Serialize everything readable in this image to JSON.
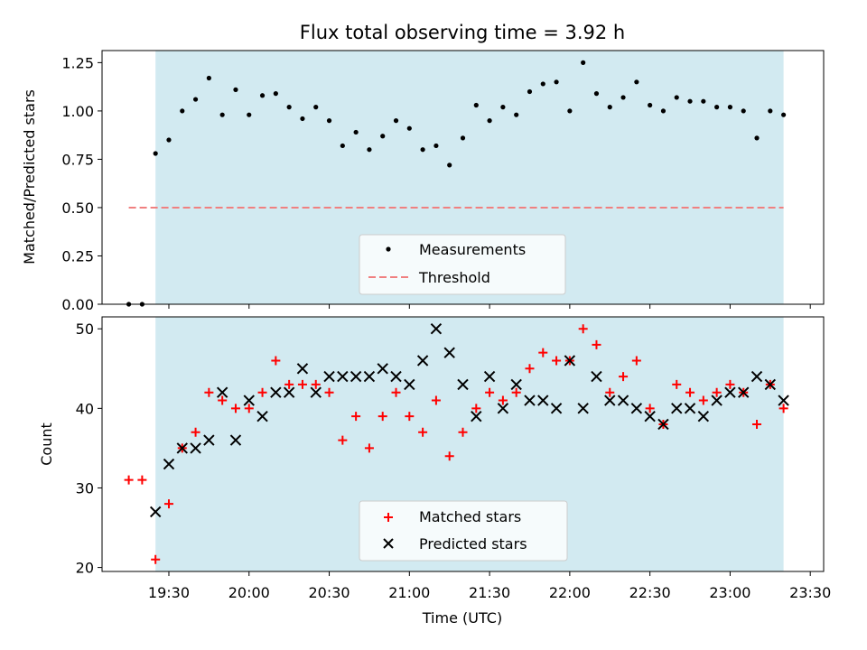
{
  "chart_data": [
    {
      "type": "scatter",
      "title": "Flux total observing time = 3.92 h",
      "xlabel": "",
      "ylabel": "Matched/Predicted stars",
      "ylim": [
        0,
        1.3125
      ],
      "x_tick_labels": [
        "19:30",
        "20:00",
        "20:30",
        "21:00",
        "21:30",
        "22:00",
        "22:30",
        "23:00",
        "23:30"
      ],
      "y_tick_labels": [
        "0.00",
        "0.25",
        "0.50",
        "0.75",
        "1.00",
        "1.25"
      ],
      "y_ticks": [
        0,
        0.25,
        0.5,
        0.75,
        1.0,
        1.25
      ],
      "shaded_span": {
        "start": "19:25",
        "end": "23:20",
        "color": "#add8e6"
      },
      "legend": {
        "placement": "lower center"
      },
      "series": [
        {
          "name": "Measurements",
          "marker": "dot",
          "color": "#000000",
          "points": [
            [
              "19:15",
              0.0
            ],
            [
              "19:20",
              0.0
            ],
            [
              "19:25",
              0.78
            ],
            [
              "19:30",
              0.85
            ],
            [
              "19:35",
              1.0
            ],
            [
              "19:40",
              1.06
            ],
            [
              "19:45",
              1.17
            ],
            [
              "19:50",
              0.98
            ],
            [
              "19:55",
              1.11
            ],
            [
              "20:00",
              0.98
            ],
            [
              "20:05",
              1.08
            ],
            [
              "20:10",
              1.09
            ],
            [
              "20:15",
              1.02
            ],
            [
              "20:20",
              0.96
            ],
            [
              "20:25",
              1.02
            ],
            [
              "20:30",
              0.95
            ],
            [
              "20:35",
              0.82
            ],
            [
              "20:40",
              0.89
            ],
            [
              "20:45",
              0.8
            ],
            [
              "20:50",
              0.87
            ],
            [
              "20:55",
              0.95
            ],
            [
              "21:00",
              0.91
            ],
            [
              "21:05",
              0.8
            ],
            [
              "21:10",
              0.82
            ],
            [
              "21:15",
              0.72
            ],
            [
              "21:20",
              0.86
            ],
            [
              "21:25",
              1.03
            ],
            [
              "21:30",
              0.95
            ],
            [
              "21:35",
              1.02
            ],
            [
              "21:40",
              0.98
            ],
            [
              "21:45",
              1.1
            ],
            [
              "21:50",
              1.14
            ],
            [
              "21:55",
              1.15
            ],
            [
              "22:00",
              1.0
            ],
            [
              "22:05",
              1.25
            ],
            [
              "22:10",
              1.09
            ],
            [
              "22:15",
              1.02
            ],
            [
              "22:20",
              1.07
            ],
            [
              "22:25",
              1.15
            ],
            [
              "22:30",
              1.03
            ],
            [
              "22:35",
              1.0
            ],
            [
              "22:40",
              1.07
            ],
            [
              "22:45",
              1.05
            ],
            [
              "22:50",
              1.05
            ],
            [
              "22:55",
              1.02
            ],
            [
              "23:00",
              1.02
            ],
            [
              "23:05",
              1.0
            ],
            [
              "23:10",
              0.86
            ],
            [
              "23:15",
              1.0
            ],
            [
              "23:20",
              0.98
            ]
          ]
        },
        {
          "name": "Threshold",
          "marker": "dashed-line",
          "color": "#f08080",
          "points": [
            [
              "19:15",
              0.5
            ],
            [
              "23:20",
              0.5
            ]
          ]
        }
      ]
    },
    {
      "type": "scatter",
      "title": "",
      "xlabel": "Time (UTC)",
      "ylabel": "Count",
      "ylim": [
        19.5,
        51.5
      ],
      "x_tick_labels": [
        "19:30",
        "20:00",
        "20:30",
        "21:00",
        "21:30",
        "22:00",
        "22:30",
        "23:00",
        "23:30"
      ],
      "y_tick_labels": [
        "20",
        "30",
        "40",
        "50"
      ],
      "y_ticks": [
        20,
        30,
        40,
        50
      ],
      "shaded_span": {
        "start": "19:25",
        "end": "23:20",
        "color": "#add8e6"
      },
      "legend": {
        "placement": "lower center"
      },
      "series": [
        {
          "name": "Matched stars",
          "marker": "plus",
          "color": "#ff0000",
          "points": [
            [
              "19:15",
              31
            ],
            [
              "19:20",
              31
            ],
            [
              "19:25",
              21
            ],
            [
              "19:30",
              28
            ],
            [
              "19:35",
              35
            ],
            [
              "19:40",
              37
            ],
            [
              "19:45",
              42
            ],
            [
              "19:50",
              41
            ],
            [
              "19:55",
              40
            ],
            [
              "20:00",
              40
            ],
            [
              "20:05",
              42
            ],
            [
              "20:10",
              46
            ],
            [
              "20:15",
              43
            ],
            [
              "20:20",
              43
            ],
            [
              "20:25",
              43
            ],
            [
              "20:30",
              42
            ],
            [
              "20:35",
              36
            ],
            [
              "20:40",
              39
            ],
            [
              "20:45",
              35
            ],
            [
              "20:50",
              39
            ],
            [
              "20:55",
              42
            ],
            [
              "21:00",
              39
            ],
            [
              "21:05",
              37
            ],
            [
              "21:10",
              41
            ],
            [
              "21:15",
              34
            ],
            [
              "21:20",
              37
            ],
            [
              "21:25",
              40
            ],
            [
              "21:30",
              42
            ],
            [
              "21:35",
              41
            ],
            [
              "21:40",
              42
            ],
            [
              "21:45",
              45
            ],
            [
              "21:50",
              47
            ],
            [
              "21:55",
              46
            ],
            [
              "22:00",
              46
            ],
            [
              "22:05",
              50
            ],
            [
              "22:10",
              48
            ],
            [
              "22:15",
              42
            ],
            [
              "22:20",
              44
            ],
            [
              "22:25",
              46
            ],
            [
              "22:30",
              40
            ],
            [
              "22:35",
              38
            ],
            [
              "22:40",
              43
            ],
            [
              "22:45",
              42
            ],
            [
              "22:50",
              41
            ],
            [
              "22:55",
              42
            ],
            [
              "23:00",
              43
            ],
            [
              "23:05",
              42
            ],
            [
              "23:10",
              38
            ],
            [
              "23:15",
              43
            ],
            [
              "23:20",
              40
            ]
          ]
        },
        {
          "name": "Predicted stars",
          "marker": "x",
          "color": "#000000",
          "points": [
            [
              "19:25",
              27
            ],
            [
              "19:30",
              33
            ],
            [
              "19:35",
              35
            ],
            [
              "19:40",
              35
            ],
            [
              "19:45",
              36
            ],
            [
              "19:50",
              42
            ],
            [
              "19:55",
              36
            ],
            [
              "20:00",
              41
            ],
            [
              "20:05",
              39
            ],
            [
              "20:10",
              42
            ],
            [
              "20:15",
              42
            ],
            [
              "20:20",
              45
            ],
            [
              "20:25",
              42
            ],
            [
              "20:30",
              44
            ],
            [
              "20:35",
              44
            ],
            [
              "20:40",
              44
            ],
            [
              "20:45",
              44
            ],
            [
              "20:50",
              45
            ],
            [
              "20:55",
              44
            ],
            [
              "21:00",
              43
            ],
            [
              "21:05",
              46
            ],
            [
              "21:10",
              50
            ],
            [
              "21:15",
              47
            ],
            [
              "21:20",
              43
            ],
            [
              "21:25",
              39
            ],
            [
              "21:30",
              44
            ],
            [
              "21:35",
              40
            ],
            [
              "21:40",
              43
            ],
            [
              "21:45",
              41
            ],
            [
              "21:50",
              41
            ],
            [
              "21:55",
              40
            ],
            [
              "22:00",
              46
            ],
            [
              "22:05",
              40
            ],
            [
              "22:10",
              44
            ],
            [
              "22:15",
              41
            ],
            [
              "22:20",
              41
            ],
            [
              "22:25",
              40
            ],
            [
              "22:30",
              39
            ],
            [
              "22:35",
              38
            ],
            [
              "22:40",
              40
            ],
            [
              "22:45",
              40
            ],
            [
              "22:50",
              39
            ],
            [
              "22:55",
              41
            ],
            [
              "23:00",
              42
            ],
            [
              "23:05",
              42
            ],
            [
              "23:10",
              44
            ],
            [
              "23:15",
              43
            ],
            [
              "23:20",
              41
            ]
          ]
        }
      ]
    }
  ]
}
